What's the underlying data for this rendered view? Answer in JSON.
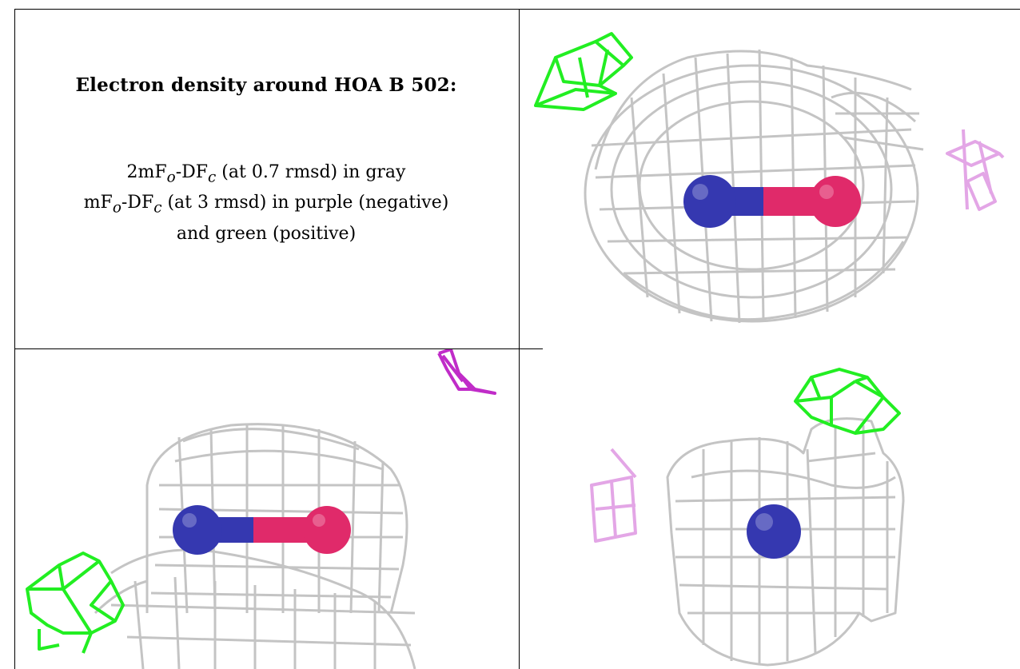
{
  "caption": {
    "title": "Electron density around HOA B 502:",
    "line1": {
      "pre": "2mF",
      "s1": "o",
      "mid": "-DF",
      "s2": "c",
      "post": " (at 0.7 rmsd) in gray"
    },
    "line2": {
      "pre": "mF",
      "s1": "o",
      "mid": "-DF",
      "s2": "c",
      "post": " (at 3 rmsd) in purple (negative)"
    },
    "line3": "and green (positive)"
  },
  "colors": {
    "mesh_gray": "#c4c4c4",
    "positive_green": "#22ee22",
    "negative_purple": "#c02cc8",
    "negative_purple_light": "#e3a6e6",
    "atom_nitrogen": "#3538b0",
    "atom_oxygen": "#e02a6a"
  }
}
